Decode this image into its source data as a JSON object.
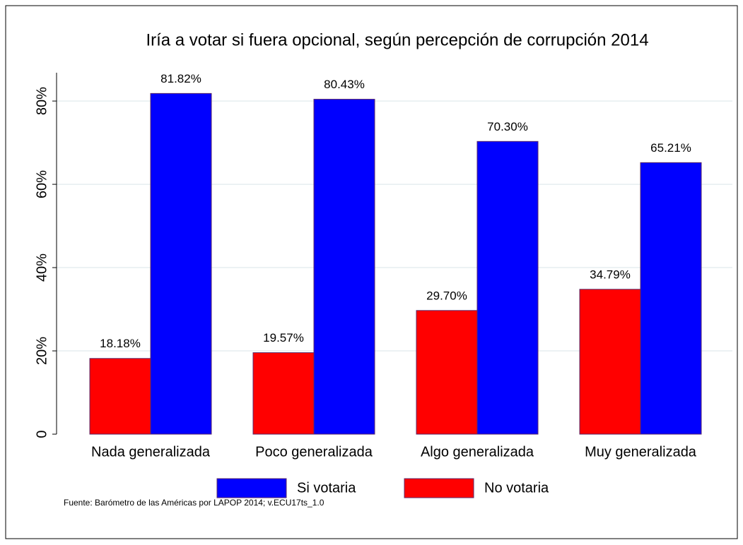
{
  "chart_data": {
    "type": "bar",
    "title": "Iría a votar si fuera opcional, según percepción de corrupción 2014",
    "categories": [
      "Nada generalizada",
      "Poco generalizada",
      "Algo generalizada",
      "Muy generalizada"
    ],
    "series": [
      {
        "name": "Si votaria",
        "color": "#0000ff",
        "values": [
          81.82,
          80.43,
          70.3,
          65.21
        ],
        "value_labels": [
          "81.82%",
          "80.43%",
          "70.30%",
          "65.21%"
        ]
      },
      {
        "name": "No votaria",
        "color": "#ff0000",
        "values": [
          18.18,
          19.57,
          29.7,
          34.79
        ],
        "value_labels": [
          "18.18%",
          "19.57%",
          "29.70%",
          "34.79%"
        ]
      }
    ],
    "ylim": [
      0,
      86.8
    ],
    "yticks": [
      0,
      {
        "value": 20,
        "label": "20%"
      },
      {
        "value": 40,
        "label": "40%"
      },
      {
        "value": 60,
        "label": "60%"
      },
      {
        "value": 80,
        "label": "80%"
      }
    ],
    "grid": true,
    "legend": "bottom",
    "note": "Fuente: Barómetro de las Américas por LAPOP 2014; v.ECU17ts_1.0"
  }
}
